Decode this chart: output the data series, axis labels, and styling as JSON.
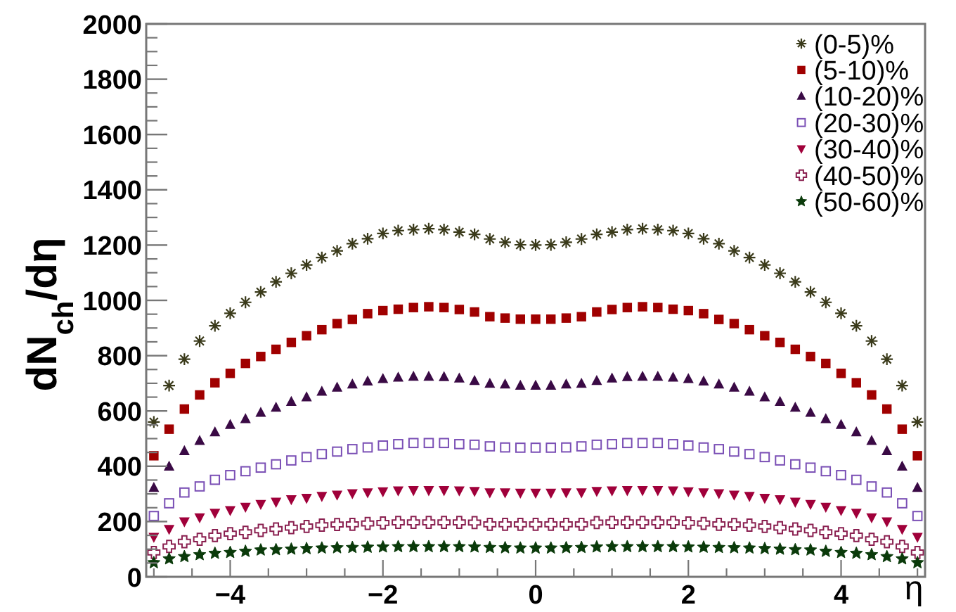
{
  "chart_data": {
    "type": "scatter",
    "xlabel": "η",
    "ylabel": "dN$_{ch}$/dη",
    "x": [
      -5,
      -4.8,
      -4.6,
      -4.4,
      -4.2,
      -4,
      -3.8,
      -3.6,
      -3.4,
      -3.2,
      -3,
      -2.8,
      -2.6,
      -2.4,
      -2.2,
      -2,
      -1.8,
      -1.6,
      -1.4,
      -1.2,
      -1,
      -0.8,
      -0.6,
      -0.4,
      -0.2,
      0,
      0.2,
      0.4,
      0.6,
      0.8,
      1,
      1.2,
      1.4,
      1.6,
      1.8,
      2,
      2.2,
      2.4,
      2.6,
      2.8,
      3,
      3.2,
      3.4,
      3.6,
      3.8,
      4,
      4.2,
      4.4,
      4.6,
      4.8,
      5
    ],
    "xlim": [
      -5.1,
      5.1
    ],
    "xticks": [
      {
        "value": -5,
        "label": null
      },
      {
        "value": -4.5,
        "label": null
      },
      -4,
      {
        "value": -3.5,
        "label": null
      },
      {
        "value": -3,
        "label": null
      },
      {
        "value": -2.5,
        "label": null
      },
      -2,
      {
        "value": -1.5,
        "label": null
      },
      {
        "value": -1,
        "label": null
      },
      {
        "value": -0.5,
        "label": null
      },
      0,
      {
        "value": 0.5,
        "label": null
      },
      {
        "value": 1,
        "label": null
      },
      {
        "value": 1.5,
        "label": null
      },
      2,
      {
        "value": 2.5,
        "label": null
      },
      {
        "value": 3,
        "label": null
      },
      {
        "value": 3.5,
        "label": null
      },
      4,
      {
        "value": 4.5,
        "label": null
      },
      {
        "value": 5,
        "label": null
      }
    ],
    "ylim": [
      0,
      2000
    ],
    "yticks": [
      0,
      200,
      400,
      600,
      800,
      1000,
      1200,
      1400,
      1600,
      1800,
      2000
    ],
    "legend": "top right",
    "grid": false,
    "series": [
      {
        "name": "(0-5)%",
        "color": "#3a3a1a",
        "marker": "cross",
        "values": [
          560,
          692,
          787,
          853,
          908,
          953,
          993,
          1030,
          1067,
          1098,
          1128,
          1155,
          1179,
          1205,
          1223,
          1242,
          1252,
          1256,
          1259,
          1256,
          1247,
          1239,
          1222,
          1210,
          1201,
          1200,
          1201,
          1210,
          1222,
          1239,
          1247,
          1256,
          1259,
          1256,
          1252,
          1242,
          1223,
          1205,
          1179,
          1155,
          1128,
          1098,
          1067,
          1030,
          993,
          953,
          908,
          853,
          787,
          692,
          560
        ]
      },
      {
        "name": "(5-10)%",
        "color": "#a00000",
        "marker": "square",
        "values": [
          438,
          534,
          607,
          658,
          702,
          736,
          772,
          797,
          823,
          848,
          872,
          894,
          916,
          931,
          952,
          963,
          968,
          974,
          977,
          974,
          967,
          958,
          941,
          936,
          932,
          932,
          932,
          936,
          941,
          958,
          967,
          974,
          977,
          974,
          968,
          963,
          952,
          931,
          916,
          894,
          872,
          848,
          823,
          797,
          772,
          736,
          702,
          658,
          607,
          534,
          438
        ]
      },
      {
        "name": "(10-20)%",
        "color": "#3a0a45",
        "marker": "triangle",
        "values": [
          322,
          399,
          455,
          492,
          523,
          550,
          571,
          594,
          612,
          633,
          650,
          670,
          685,
          696,
          707,
          716,
          721,
          724,
          724,
          723,
          718,
          709,
          699,
          696,
          692,
          692,
          692,
          696,
          699,
          709,
          718,
          723,
          724,
          724,
          721,
          716,
          707,
          696,
          685,
          670,
          650,
          633,
          612,
          594,
          571,
          550,
          523,
          492,
          455,
          399,
          322
        ]
      },
      {
        "name": "(20-30)%",
        "color": "#7a4fb5",
        "marker": "square-open",
        "values": [
          220,
          266,
          305,
          327,
          351,
          368,
          382,
          395,
          407,
          421,
          433,
          444,
          453,
          462,
          468,
          475,
          480,
          484,
          484,
          484,
          480,
          478,
          472,
          468,
          467,
          467,
          467,
          468,
          472,
          478,
          480,
          484,
          484,
          484,
          480,
          475,
          468,
          462,
          453,
          444,
          433,
          421,
          407,
          395,
          382,
          368,
          351,
          327,
          305,
          266,
          220
        ]
      },
      {
        "name": "(30-40)%",
        "color": "#a0003a",
        "marker": "triangle-down",
        "values": [
          144,
          173,
          200,
          215,
          231,
          241,
          253,
          263,
          271,
          280,
          285,
          292,
          297,
          302,
          305,
          309,
          312,
          313,
          313,
          313,
          312,
          310,
          305,
          305,
          304,
          304,
          304,
          305,
          305,
          310,
          312,
          313,
          313,
          313,
          312,
          309,
          305,
          302,
          297,
          292,
          285,
          280,
          271,
          263,
          253,
          241,
          231,
          215,
          200,
          173,
          144
        ]
      },
      {
        "name": "(40-50)%",
        "color": "#8a2050",
        "marker": "cross-open",
        "values": [
          88,
          110,
          127,
          136,
          149,
          156,
          161,
          168,
          173,
          178,
          182,
          187,
          189,
          190,
          193,
          195,
          197,
          197,
          197,
          197,
          197,
          196,
          190,
          190,
          190,
          190,
          190,
          190,
          190,
          196,
          197,
          197,
          197,
          197,
          197,
          195,
          193,
          190,
          189,
          187,
          182,
          178,
          173,
          168,
          161,
          156,
          149,
          136,
          127,
          110,
          88
        ]
      },
      {
        "name": "(50-60)%",
        "color": "#0a3a0a",
        "marker": "star",
        "values": [
          51,
          65,
          73,
          80,
          85,
          88,
          92,
          97,
          98,
          100,
          102,
          104,
          105,
          106,
          107,
          108,
          109,
          109,
          109,
          109,
          109,
          108,
          106,
          105,
          104,
          104,
          104,
          105,
          106,
          108,
          109,
          109,
          109,
          109,
          109,
          108,
          107,
          106,
          105,
          104,
          102,
          100,
          98,
          97,
          92,
          88,
          85,
          80,
          73,
          65,
          51
        ]
      }
    ]
  }
}
